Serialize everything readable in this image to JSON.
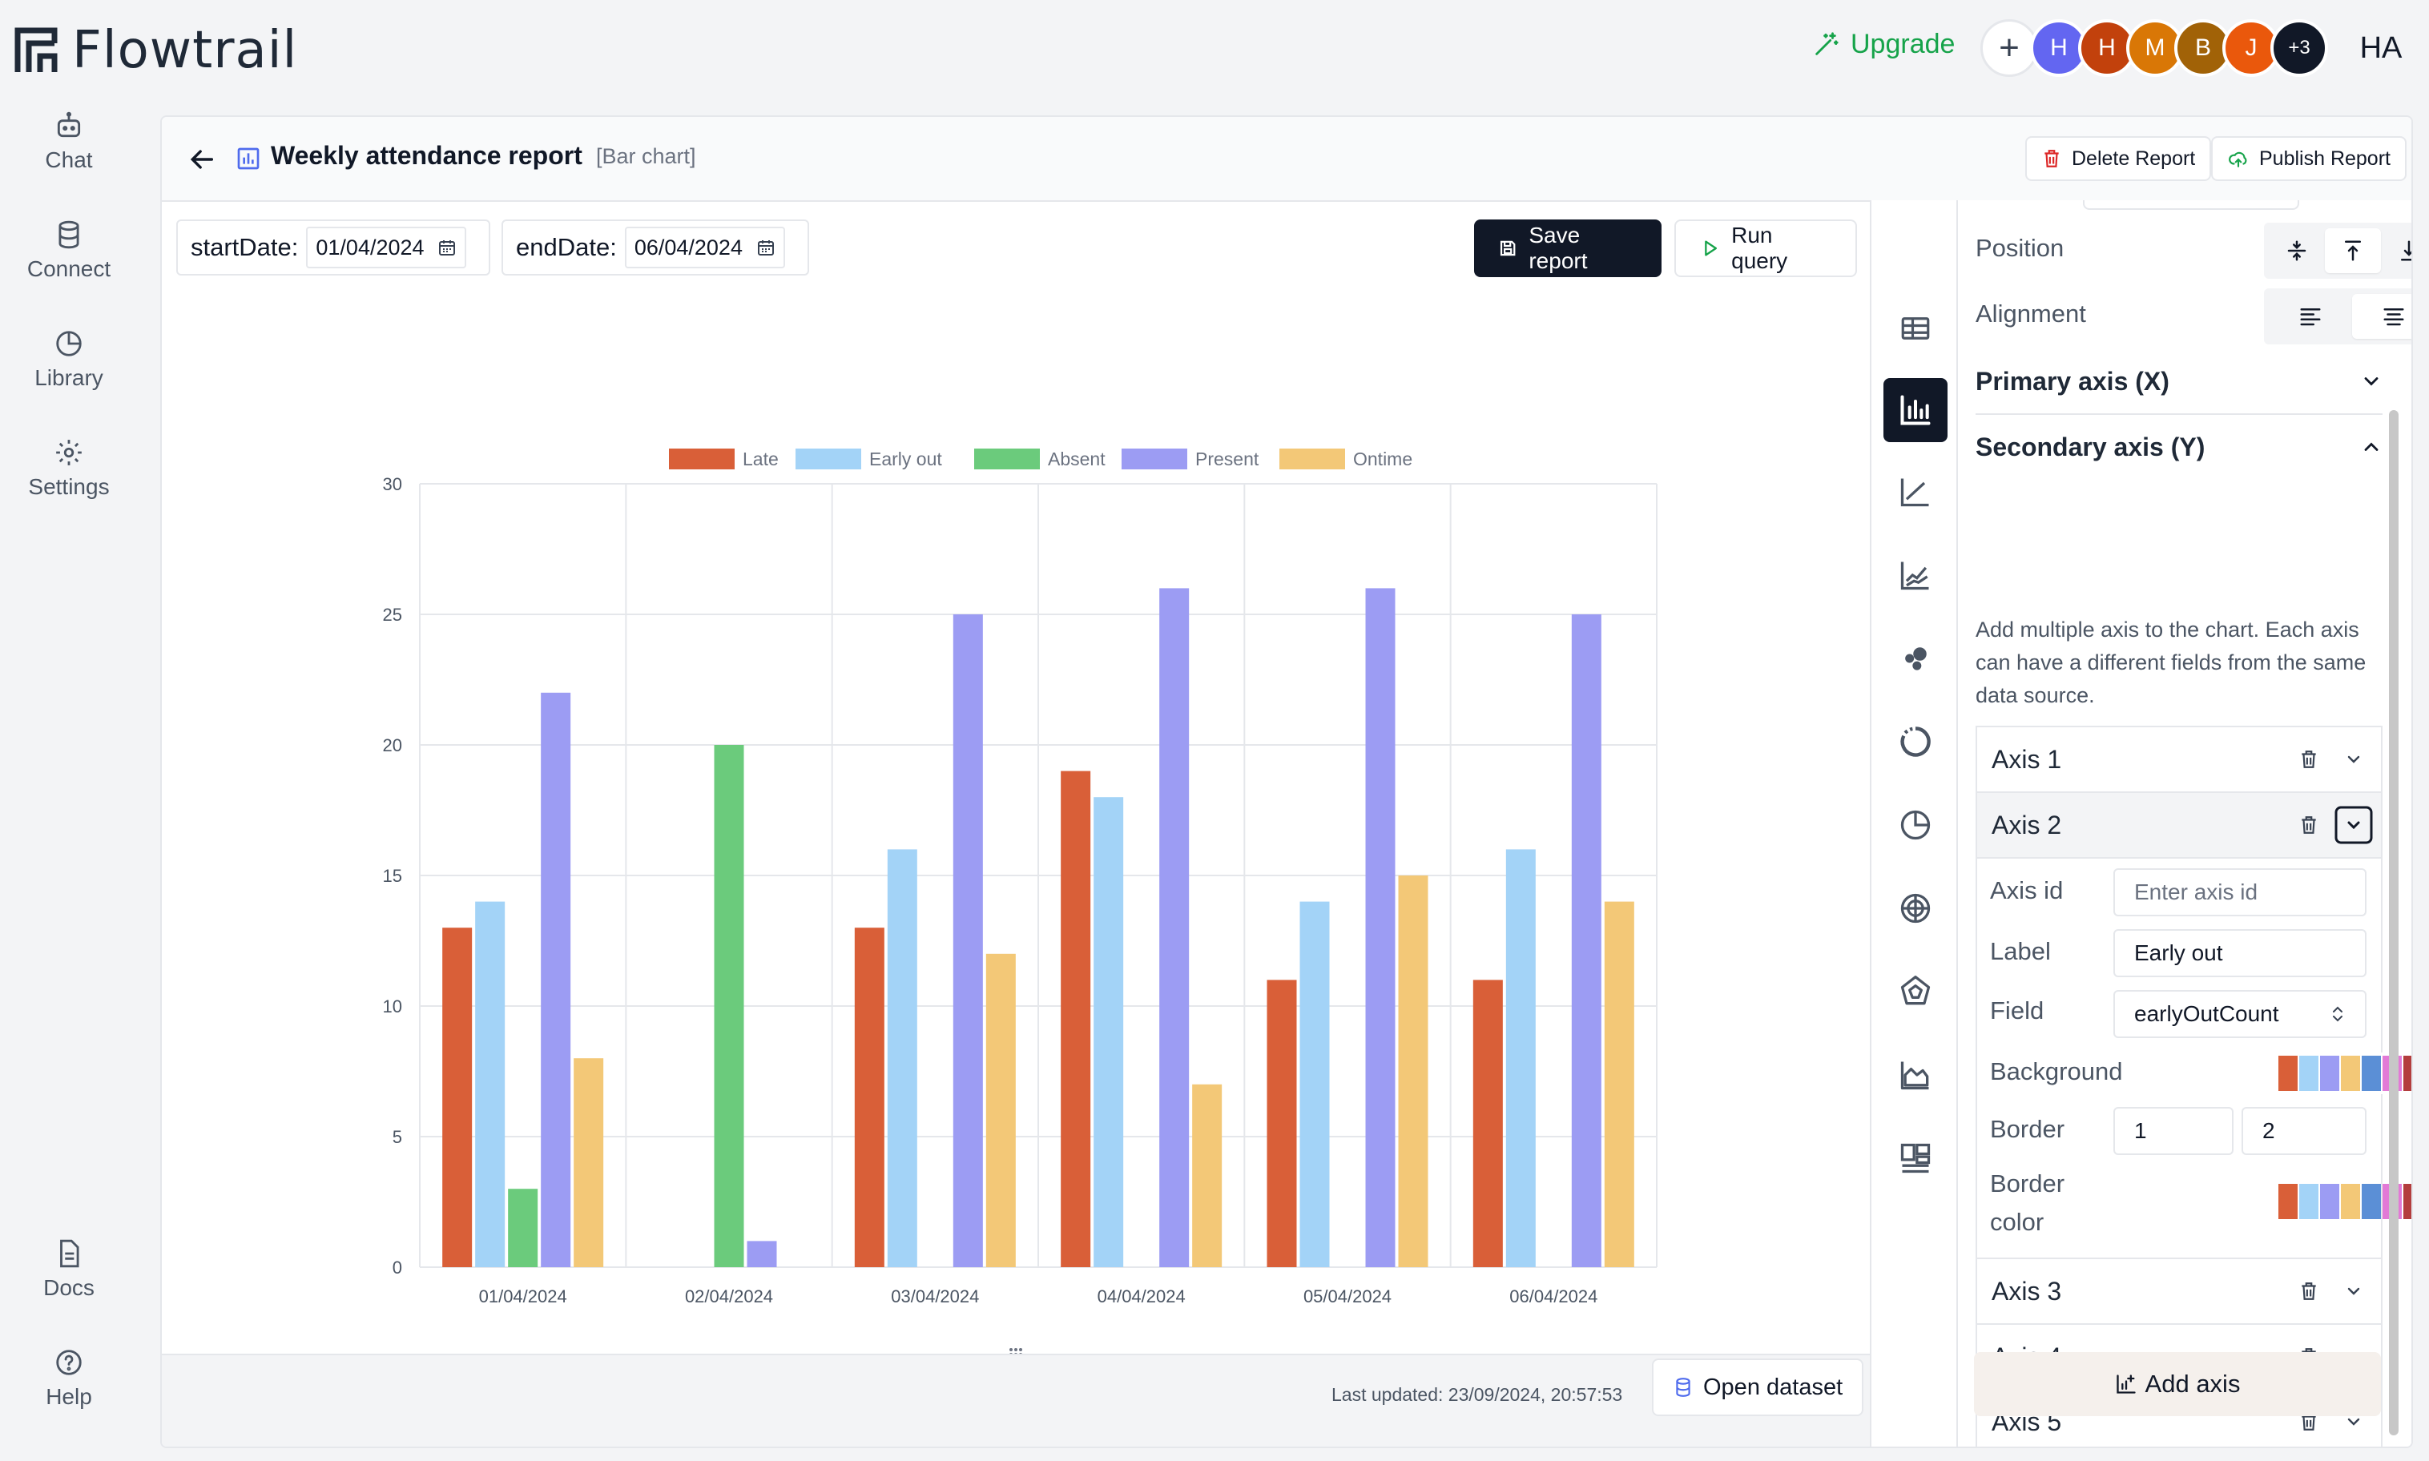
{
  "app": {
    "name": "Flowtrail"
  },
  "topbar": {
    "upgrade_label": "Upgrade",
    "members": [
      {
        "initial": "H",
        "color": "#6366f1"
      },
      {
        "initial": "H",
        "color": "#c2410c"
      },
      {
        "initial": "M",
        "color": "#d97706"
      },
      {
        "initial": "B",
        "color": "#a16207"
      },
      {
        "initial": "J",
        "color": "#ea580c"
      }
    ],
    "more_members": "+3",
    "user_initials": "HA"
  },
  "nav": {
    "items": [
      {
        "label": "Chat",
        "icon": "bot-icon"
      },
      {
        "label": "Connect",
        "icon": "database-icon"
      },
      {
        "label": "Library",
        "icon": "pie-icon"
      },
      {
        "label": "Settings",
        "icon": "gear-icon"
      }
    ],
    "bottom": [
      {
        "label": "Docs",
        "icon": "doc-icon"
      },
      {
        "label": "Help",
        "icon": "help-icon"
      }
    ]
  },
  "report": {
    "title": "Weekly attendance report",
    "type_label": "[Bar chart]",
    "delete_label": "Delete Report",
    "publish_label": "Publish Report"
  },
  "filters": {
    "start_label": "startDate:",
    "start_value": "01/04/2024",
    "end_label": "endDate:",
    "end_value": "06/04/2024"
  },
  "actions": {
    "save_label": "Save report",
    "run_label": "Run query"
  },
  "chart_data": {
    "type": "bar",
    "categories": [
      "01/04/2024",
      "02/04/2024",
      "03/04/2024",
      "04/04/2024",
      "05/04/2024",
      "06/04/2024"
    ],
    "series": [
      {
        "name": "Late",
        "color": "#d95f38",
        "values": [
          13,
          0,
          13,
          19,
          11,
          11
        ]
      },
      {
        "name": "Early out",
        "color": "#a3d3f7",
        "values": [
          14,
          0,
          16,
          18,
          14,
          16
        ]
      },
      {
        "name": "Absent",
        "color": "#6bcb7c",
        "values": [
          3,
          20,
          0,
          0,
          0,
          0
        ]
      },
      {
        "name": "Present",
        "color": "#9c9cf3",
        "values": [
          22,
          1,
          25,
          26,
          26,
          25
        ]
      },
      {
        "name": "Ontime",
        "color": "#f3c877",
        "values": [
          8,
          0,
          12,
          7,
          15,
          14
        ]
      }
    ],
    "ylim": [
      0,
      30
    ],
    "yticks": [
      0,
      5,
      10,
      15,
      20,
      25,
      30
    ],
    "grid": true,
    "legend_position": "top"
  },
  "footer": {
    "last_updated": "Last updated: 23/09/2024, 20:57:53",
    "open_dataset_label": "Open dataset"
  },
  "panel": {
    "position_label": "Position",
    "alignment_label": "Alignment",
    "primary_axis_label": "Primary axis (X)",
    "secondary_axis_label": "Secondary axis (Y)",
    "axes_help": "Add multiple axis to the chart. Each axis can have a different fields from the same data source.",
    "axes": [
      "Axis 1",
      "Axis 2",
      "Axis 3",
      "Axis 4",
      "Axis 5"
    ],
    "axis_id_label": "Axis id",
    "axis_id_placeholder": "Enter axis id",
    "label_label": "Label",
    "label_value": "Early out",
    "field_label": "Field",
    "field_value": "earlyOutCount",
    "background_label": "Background",
    "border_label": "Border",
    "border_width": "1",
    "border_radius": "2",
    "border_color_label_1": "Border",
    "border_color_label_2": "color",
    "add_axis_label": "Add axis",
    "palette": [
      "#d95f38",
      "#a3d3f7",
      "#9c9cf3",
      "#f3c877",
      "#5b8fd6",
      "#e27ad6",
      "#b33d3d",
      "#7a7a7a",
      "#6bcb7c",
      "#9bd0f5"
    ]
  }
}
